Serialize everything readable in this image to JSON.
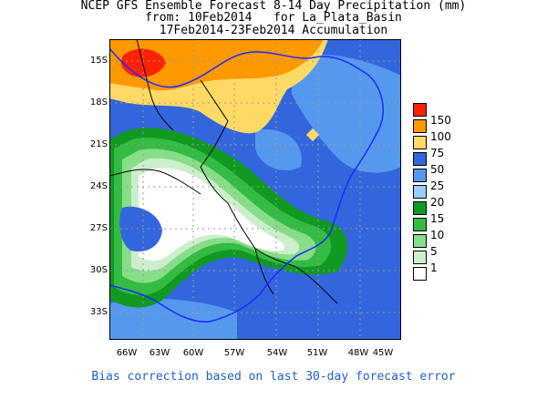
{
  "title": {
    "line1": "NCEP GFS Ensemble Forecast 8-14 Day Precipitation (mm)",
    "line2": "from: 10Feb2014   for La_Plata_Basin",
    "line3": "17Feb2014-23Feb2014 Accumulation"
  },
  "map": {
    "lat_labels": [
      "15S",
      "18S",
      "21S",
      "24S",
      "27S",
      "30S",
      "33S"
    ],
    "lon_labels": [
      "66W",
      "63W",
      "60W",
      "57W",
      "54W",
      "51W",
      "48W",
      "45W"
    ]
  },
  "legend": {
    "items": [
      {
        "label": "150",
        "color": "#ff2200"
      },
      {
        "label": "100",
        "color": "#ff9900"
      },
      {
        "label": "75",
        "color": "#ffd966"
      },
      {
        "label": "50",
        "color": "#3366dd"
      },
      {
        "label": "25",
        "color": "#5599ee"
      },
      {
        "label": "20",
        "color": "#99ccff"
      },
      {
        "label": "15",
        "color": "#119922"
      },
      {
        "label": "10",
        "color": "#33bb44"
      },
      {
        "label": "5",
        "color": "#88dd88"
      },
      {
        "label": "1",
        "color": "#cceecc"
      },
      {
        "label": "",
        "color": "#ffffff"
      }
    ]
  },
  "footer": "Bias correction based on last 30-day forecast error"
}
